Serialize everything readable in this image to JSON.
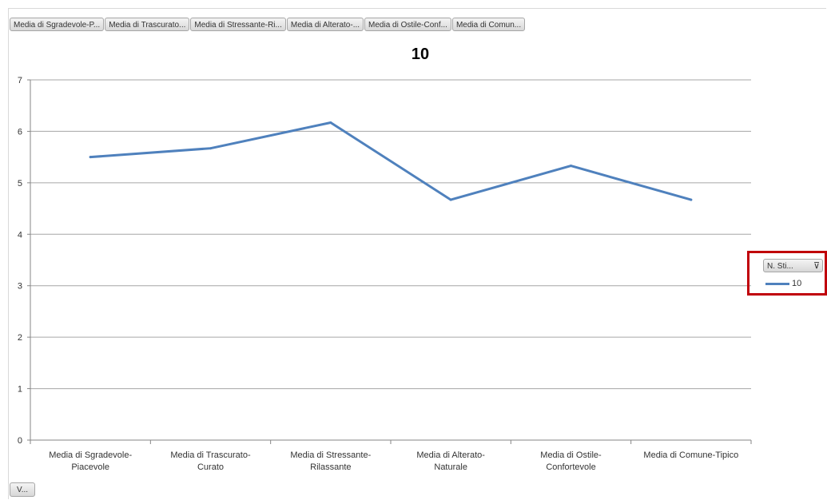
{
  "field_buttons": [
    "Media di Sgradevole-P...",
    "Media di Trascurato...",
    "Media di Stressante-Ri...",
    "Media di Alterato-...",
    "Media di Ostile-Conf...",
    "Media di Comun..."
  ],
  "axis_field_button": "V...",
  "legend": {
    "field_button": "N. Sti...",
    "filter_glyph": "⊽",
    "entry_label": "10"
  },
  "colors": {
    "series": "#4f81bd",
    "grid": "#a6a6a6",
    "highlight": "#c0000a"
  },
  "chart_data": {
    "type": "line",
    "title": "10",
    "categories": [
      [
        "Media di Sgradevole-",
        "Piacevole"
      ],
      [
        "Media di Trascurato-",
        "Curato"
      ],
      [
        "Media di Stressante-",
        "Rilassante"
      ],
      [
        "Media di Alterato-",
        "Naturale"
      ],
      [
        "Media di Ostile-",
        "Confortevole"
      ],
      [
        "Media di Comune-Tipico"
      ]
    ],
    "series": [
      {
        "name": "10",
        "values": [
          5.5,
          5.67,
          6.17,
          4.67,
          5.33,
          4.67
        ]
      }
    ],
    "ylim": [
      0,
      7
    ],
    "yticks": [
      0,
      1,
      2,
      3,
      4,
      5,
      6,
      7
    ],
    "grid": true,
    "legend_position": "right"
  }
}
